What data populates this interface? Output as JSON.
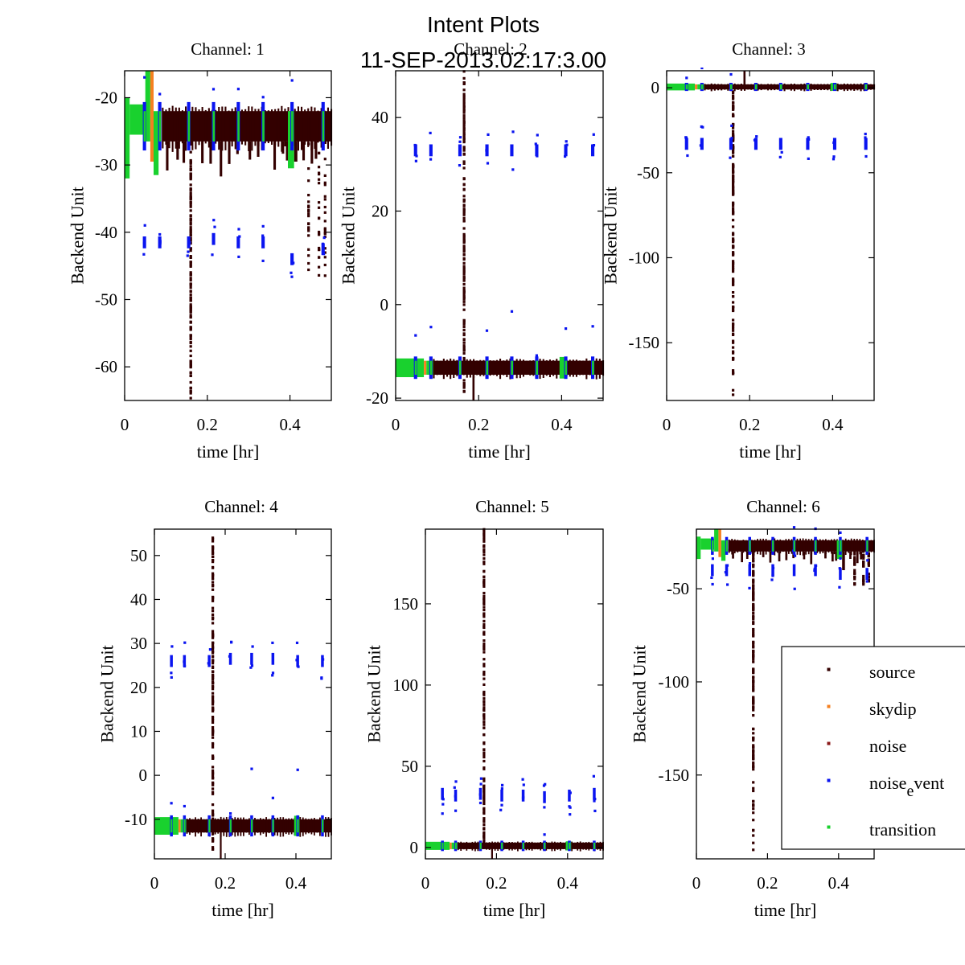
{
  "figure": {
    "title_line1": "Intent Plots",
    "title_line2": "11-SEP-2013.02:17:3.00"
  },
  "colors": {
    "source": "#330000",
    "skydip": "#f58020",
    "noise": "#8b1a1a",
    "noise_event": "#0a14f0",
    "transition": "#19d12e"
  },
  "legend": {
    "placement": "inside lower-right of Channel 6, extending past right edge",
    "entries": [
      {
        "key": "source",
        "label_main": "source",
        "label_sub": ""
      },
      {
        "key": "skydip",
        "label_main": "skydip",
        "label_sub": ""
      },
      {
        "key": "noise",
        "label_main": "noise",
        "label_sub": ""
      },
      {
        "key": "noise_event",
        "label_main": "noise",
        "label_sub": "e",
        "label_tail": "vent"
      },
      {
        "key": "transition",
        "label_main": "transition",
        "label_sub": ""
      }
    ]
  },
  "chart_data": [
    {
      "type": "scatter",
      "title": "Channel: 1",
      "xlabel": "time [hr]",
      "ylabel": "Backend Unit",
      "xlim": [
        0,
        0.5
      ],
      "ylim": [
        -65,
        -16
      ],
      "xticks": [
        0,
        0.2,
        0.4
      ],
      "xtick_labels": [
        "0",
        "0.2",
        "0.4"
      ],
      "yticks": [
        -20,
        -30,
        -40,
        -50,
        -60
      ],
      "ytick_labels": [
        "-20",
        "-30",
        "-40",
        "-50",
        "-60"
      ],
      "series_summary": {
        "source_baseline": [
          -26.5,
          -22
        ],
        "source_spike": {
          "x": 0.16,
          "range": [
            -65,
            -22
          ]
        },
        "transition_start": {
          "x": [
            0,
            0.085
          ],
          "range": [
            -32,
            -16
          ]
        },
        "skydip_peak": {
          "x": 0.06,
          "range": [
            -27,
            -16
          ]
        },
        "noise_event_clusters": {
          "x": [
            0.048,
            0.085,
            0.155,
            0.215,
            0.275,
            0.335,
            0.405,
            0.48
          ],
          "level": [
            -41.5,
            -41.5,
            -41.5,
            -41,
            -41.5,
            -41.5,
            -44,
            -42.5
          ]
        }
      }
    },
    {
      "type": "scatter",
      "title": "Channel: 2",
      "xlabel": "time [hr]",
      "ylabel": "Backend Unit",
      "xlim": [
        0,
        0.5
      ],
      "ylim": [
        -20.5,
        50
      ],
      "xticks": [
        0,
        0.2,
        0.4
      ],
      "xtick_labels": [
        "0",
        "0.2",
        "0.4"
      ],
      "yticks": [
        40,
        20,
        0,
        -20
      ],
      "ytick_labels": [
        "40",
        "20",
        "0",
        "-20"
      ],
      "series_summary": {
        "source_baseline": [
          -15,
          -12
        ],
        "source_spike": {
          "x": 0.165,
          "range": [
            -19,
            50
          ]
        },
        "transition_start": {
          "x": [
            0,
            0.085
          ],
          "range": [
            -15,
            -12
          ]
        },
        "noise_event_clusters": {
          "x": [
            0.048,
            0.085,
            0.155,
            0.22,
            0.28,
            0.34,
            0.41,
            0.475
          ],
          "level": [
            33,
            33,
            33,
            33,
            33,
            33,
            33,
            33
          ]
        }
      }
    },
    {
      "type": "scatter",
      "title": "Channel: 3",
      "xlabel": "time [hr]",
      "ylabel": "Backend Unit",
      "xlim": [
        0,
        0.5
      ],
      "ylim": [
        -184,
        10
      ],
      "xticks": [
        0,
        0.2,
        0.4
      ],
      "xtick_labels": [
        "0",
        "0.2",
        "0.4"
      ],
      "yticks": [
        0,
        -50,
        -100,
        -150
      ],
      "ytick_labels": [
        "0",
        "-50",
        "-100",
        "-150"
      ],
      "series_summary": {
        "source_baseline": [
          -1,
          2
        ],
        "source_spike": {
          "x": 0.16,
          "range": [
            -184,
            0
          ]
        },
        "noise_event_clusters": {
          "x": [
            0.048,
            0.085,
            0.155,
            0.215,
            0.275,
            0.34,
            0.405,
            0.48
          ],
          "level": [
            -33,
            -33,
            -33,
            -33,
            -33,
            -33,
            -33,
            -33
          ]
        }
      }
    },
    {
      "type": "scatter",
      "title": "Channel: 4",
      "xlabel": "time [hr]",
      "ylabel": "Backend Unit",
      "xlim": [
        0,
        0.5
      ],
      "ylim": [
        -19,
        56
      ],
      "xticks": [
        0,
        0.2,
        0.4
      ],
      "xtick_labels": [
        "0",
        "0.2",
        "0.4"
      ],
      "yticks": [
        50,
        40,
        30,
        20,
        10,
        0,
        -10
      ],
      "ytick_labels": [
        "50",
        "40",
        "30",
        "20",
        "10",
        "0",
        "-10"
      ],
      "series_summary": {
        "source_baseline": [
          -13,
          -10
        ],
        "source_spike": {
          "x": 0.165,
          "range": [
            -17,
            56
          ]
        },
        "noise_event_clusters": {
          "x": [
            0.048,
            0.085,
            0.155,
            0.215,
            0.275,
            0.335,
            0.405,
            0.475
          ],
          "level": [
            26,
            26,
            26,
            26.5,
            26.5,
            26.5,
            26,
            26
          ]
        }
      }
    },
    {
      "type": "scatter",
      "title": "Channel: 5",
      "xlabel": "time [hr]",
      "ylabel": "Backend Unit",
      "xlim": [
        0,
        0.5
      ],
      "ylim": [
        -7,
        196
      ],
      "xticks": [
        0,
        0.2,
        0.4
      ],
      "xtick_labels": [
        "0",
        "0.2",
        "0.4"
      ],
      "yticks": [
        150,
        100,
        50,
        0
      ],
      "ytick_labels": [
        "150",
        "100",
        "50",
        "0"
      ],
      "series_summary": {
        "source_baseline": [
          -1,
          3
        ],
        "source_spike": {
          "x": 0.165,
          "range": [
            0,
            196
          ]
        },
        "noise_event_clusters": {
          "x": [
            0.048,
            0.085,
            0.155,
            0.215,
            0.275,
            0.335,
            0.405,
            0.475
          ],
          "level": [
            33,
            32,
            33,
            32,
            32,
            31,
            32,
            33
          ]
        }
      }
    },
    {
      "type": "scatter",
      "title": "Channel: 6",
      "xlabel": "time [hr]",
      "ylabel": "Backend Unit",
      "xlim": [
        0,
        0.5
      ],
      "ylim": [
        -195,
        -18
      ],
      "xticks": [
        0,
        0.2,
        0.4
      ],
      "xtick_labels": [
        "0",
        "0.2",
        "0.4"
      ],
      "yticks": [
        -50,
        -100,
        -150
      ],
      "ytick_labels": [
        "-50",
        "-100",
        "-150"
      ],
      "series_summary": {
        "source_baseline": [
          -30,
          -24
        ],
        "source_spike": {
          "x": 0.16,
          "range": [
            -195,
            -25
          ]
        },
        "noise_event_clusters": {
          "x": [
            0.045,
            0.085,
            0.15,
            0.215,
            0.275,
            0.335,
            0.405,
            0.48
          ],
          "level": [
            -40,
            -40,
            -40,
            -40,
            -40,
            -40,
            -42,
            -42
          ]
        }
      }
    }
  ]
}
